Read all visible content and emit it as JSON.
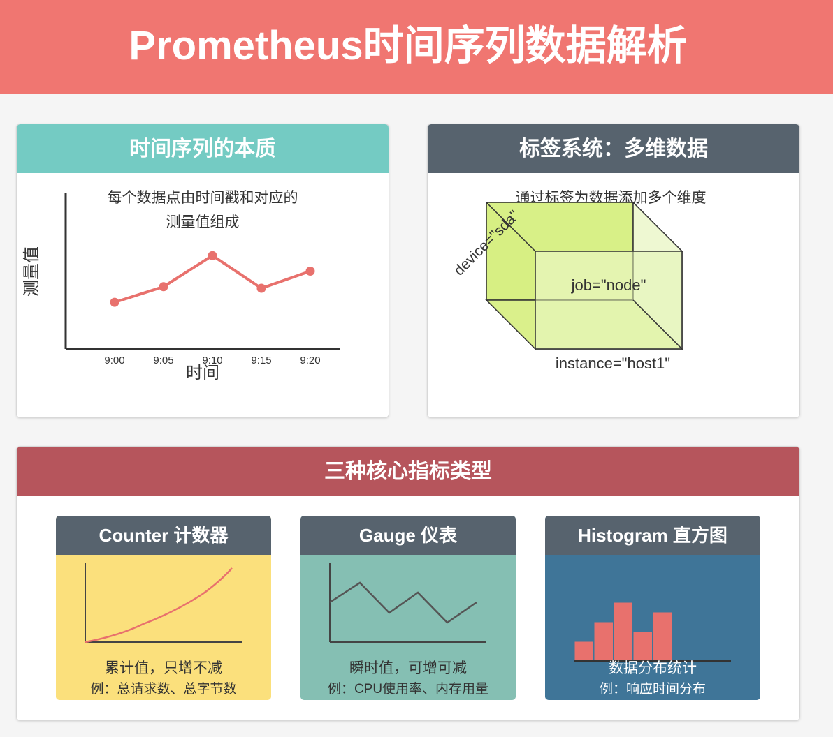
{
  "title": "Prometheus时间序列数据解析",
  "timeseries_card": {
    "title": "时间序列的本质",
    "description_line1": "每个数据点由时间戳和对应的",
    "description_line2": "测量值组成",
    "ylabel": "测量值",
    "xlabel": "时间"
  },
  "chart_data": {
    "type": "line",
    "categories": [
      "9:00",
      "9:05",
      "9:10",
      "9:15",
      "9:20"
    ],
    "values": [
      3,
      4,
      6,
      3.9,
      5
    ],
    "xlabel": "时间",
    "ylabel": "测量值",
    "ylim": [
      0,
      10
    ],
    "colors": {
      "line": "#e8716d"
    }
  },
  "labels_card": {
    "title": "标签系统：多维数据",
    "description": "通过标签为数据添加多个维度",
    "label_device": "device=\"sda\"",
    "label_job": "job=\"node\"",
    "label_instance": "instance=\"host1\""
  },
  "metrics_card": {
    "title": "三种核心指标类型",
    "counter": {
      "title": "Counter 计数器",
      "desc": "累计值，只增不减",
      "example": "例：总请求数、总字节数"
    },
    "gauge": {
      "title": "Gauge 仪表",
      "desc": "瞬时值，可增可减",
      "example": "例：CPU使用率、内存用量"
    },
    "histogram": {
      "title": "Histogram 直方图",
      "desc": "数据分布统计",
      "example": "例：响应时间分布",
      "bars": [
        1,
        2,
        3,
        1.5,
        2.5
      ]
    }
  },
  "colors": {
    "header": "#f07671",
    "teal_head": "#74cbc3",
    "slate_head": "#57636e",
    "red_head": "#b6555c",
    "counter_bg": "#fbe07c",
    "gauge_bg": "#85bfb3",
    "histogram_bg": "#3f7598",
    "accent": "#e8716d"
  }
}
